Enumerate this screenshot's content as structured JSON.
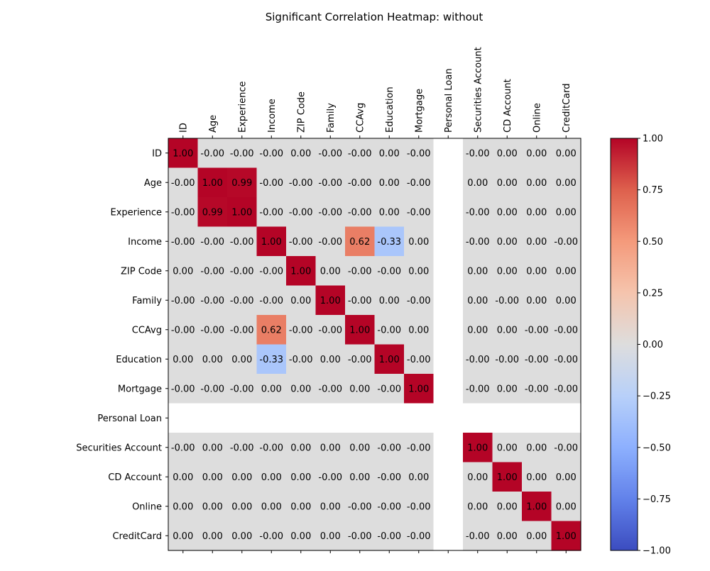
{
  "chart_data": {
    "type": "heatmap",
    "title": "Significant Correlation Heatmap: without",
    "labels": [
      "ID",
      "Age",
      "Experience",
      "Income",
      "ZIP Code",
      "Family",
      "CCAvg",
      "Education",
      "Mortgage",
      "Personal Loan",
      "Securities Account",
      "CD Account",
      "Online",
      "CreditCard"
    ],
    "cell_text": [
      [
        "1.00",
        "-0.00",
        "-0.00",
        "-0.00",
        "0.00",
        "-0.00",
        "-0.00",
        "0.00",
        "-0.00",
        "",
        "-0.00",
        "0.00",
        "0.00",
        "0.00"
      ],
      [
        "-0.00",
        "1.00",
        "0.99",
        "-0.00",
        "-0.00",
        "-0.00",
        "-0.00",
        "0.00",
        "-0.00",
        "",
        "0.00",
        "0.00",
        "0.00",
        "0.00"
      ],
      [
        "-0.00",
        "0.99",
        "1.00",
        "-0.00",
        "-0.00",
        "-0.00",
        "-0.00",
        "0.00",
        "-0.00",
        "",
        "-0.00",
        "0.00",
        "0.00",
        "0.00"
      ],
      [
        "-0.00",
        "-0.00",
        "-0.00",
        "1.00",
        "-0.00",
        "-0.00",
        "0.62",
        "-0.33",
        "0.00",
        "",
        "-0.00",
        "0.00",
        "0.00",
        "-0.00"
      ],
      [
        "0.00",
        "-0.00",
        "-0.00",
        "-0.00",
        "1.00",
        "0.00",
        "-0.00",
        "-0.00",
        "0.00",
        "",
        "0.00",
        "0.00",
        "0.00",
        "0.00"
      ],
      [
        "-0.00",
        "-0.00",
        "-0.00",
        "-0.00",
        "0.00",
        "1.00",
        "-0.00",
        "0.00",
        "-0.00",
        "",
        "0.00",
        "-0.00",
        "0.00",
        "0.00"
      ],
      [
        "-0.00",
        "-0.00",
        "-0.00",
        "0.62",
        "-0.00",
        "-0.00",
        "1.00",
        "-0.00",
        "0.00",
        "",
        "0.00",
        "0.00",
        "-0.00",
        "-0.00"
      ],
      [
        "0.00",
        "0.00",
        "0.00",
        "-0.33",
        "-0.00",
        "0.00",
        "-0.00",
        "1.00",
        "-0.00",
        "",
        "-0.00",
        "-0.00",
        "-0.00",
        "-0.00"
      ],
      [
        "-0.00",
        "-0.00",
        "-0.00",
        "0.00",
        "0.00",
        "-0.00",
        "0.00",
        "-0.00",
        "1.00",
        "",
        "-0.00",
        "0.00",
        "-0.00",
        "-0.00"
      ],
      [
        "",
        "",
        "",
        "",
        "",
        "",
        "",
        "",
        "",
        "",
        "",
        "",
        "",
        ""
      ],
      [
        "-0.00",
        "0.00",
        "-0.00",
        "-0.00",
        "0.00",
        "0.00",
        "0.00",
        "-0.00",
        "-0.00",
        "",
        "1.00",
        "0.00",
        "0.00",
        "-0.00"
      ],
      [
        "0.00",
        "0.00",
        "0.00",
        "0.00",
        "0.00",
        "-0.00",
        "0.00",
        "-0.00",
        "0.00",
        "",
        "0.00",
        "1.00",
        "0.00",
        "0.00"
      ],
      [
        "0.00",
        "0.00",
        "0.00",
        "0.00",
        "0.00",
        "0.00",
        "-0.00",
        "-0.00",
        "-0.00",
        "",
        "0.00",
        "0.00",
        "1.00",
        "0.00"
      ],
      [
        "0.00",
        "0.00",
        "0.00",
        "-0.00",
        "0.00",
        "0.00",
        "-0.00",
        "-0.00",
        "-0.00",
        "",
        "-0.00",
        "0.00",
        "0.00",
        "1.00"
      ]
    ],
    "value_range": [
      -1,
      1
    ],
    "colorbar_ticks": [
      "1.00",
      "0.75",
      "0.50",
      "0.25",
      "0.00",
      "−0.25",
      "−0.50",
      "−0.75",
      "−1.00"
    ],
    "colormap": "coolwarm",
    "colors": {
      "negative_end": "#3b4cc0",
      "neutral": "#dddddd",
      "positive_end": "#b40426",
      "missing": "#ffffff"
    },
    "xaxis_position": "top",
    "grid": false
  }
}
